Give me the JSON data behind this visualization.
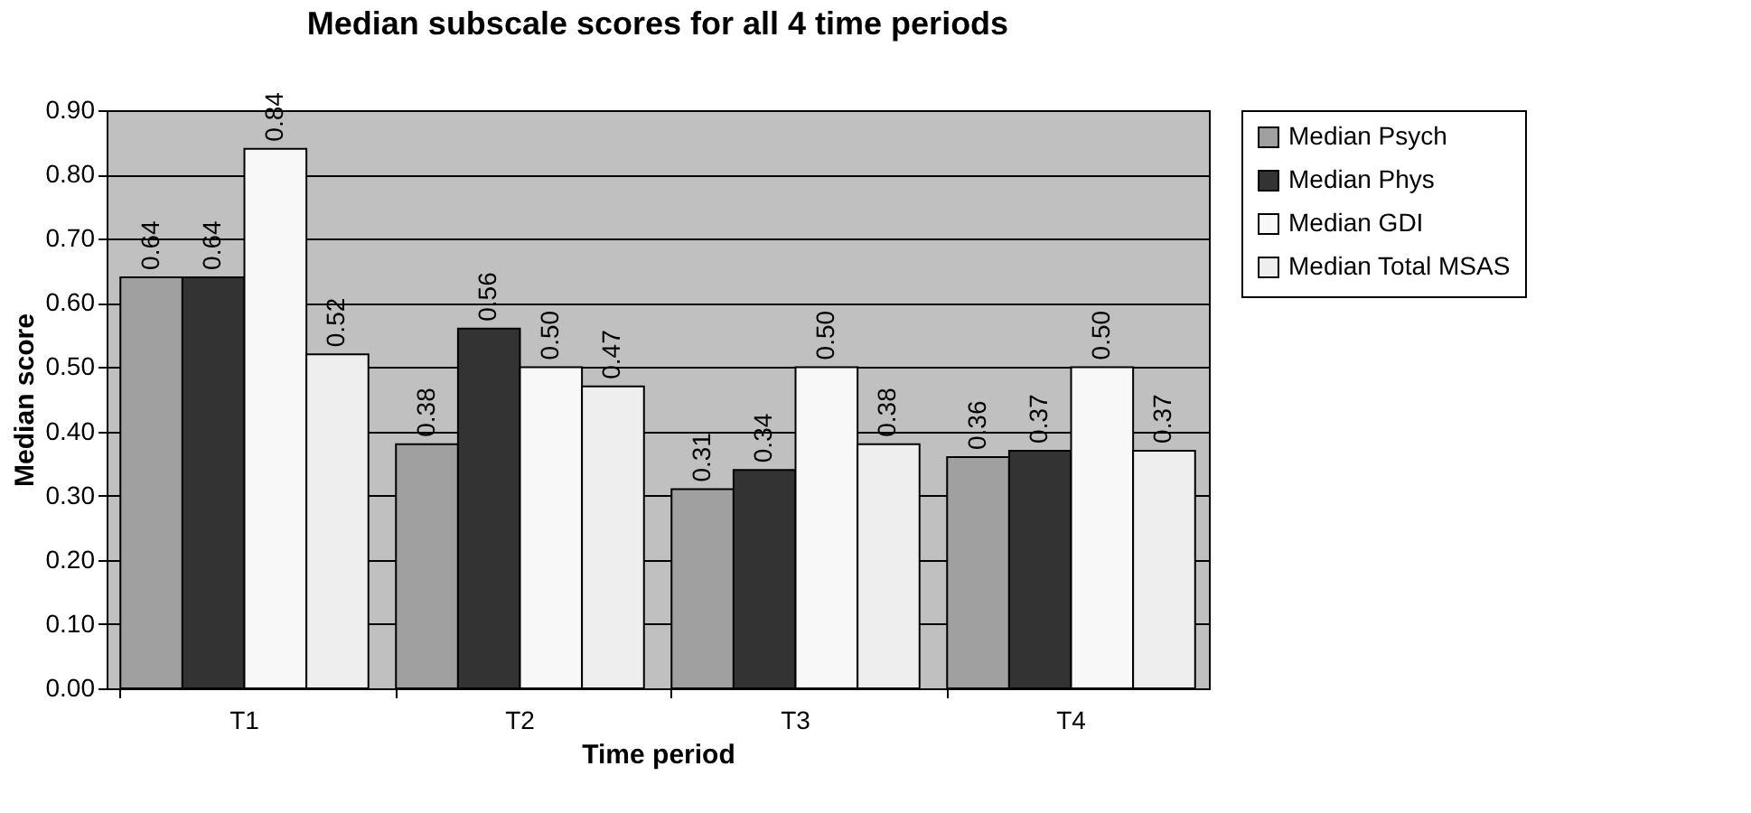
{
  "chart_data": {
    "type": "bar",
    "title": "Median subscale scores for all 4 time periods",
    "xlabel": "Time period",
    "ylabel": "Median score",
    "categories": [
      "T1",
      "T2",
      "T3",
      "T4"
    ],
    "series": [
      {
        "name": "Median Psych",
        "color": "#a0a0a0",
        "values": [
          0.64,
          0.38,
          0.31,
          0.36
        ],
        "value_labels": [
          "0.64",
          "0.38",
          "0.31",
          "0.36"
        ]
      },
      {
        "name": "Median Phys",
        "color": "#333333",
        "values": [
          0.64,
          0.56,
          0.34,
          0.37
        ],
        "value_labels": [
          "0.64",
          "0.56",
          "0.34",
          "0.37"
        ]
      },
      {
        "name": "Median GDI",
        "color": "#f8f8f8",
        "values": [
          0.84,
          0.5,
          0.5,
          0.5
        ],
        "value_labels": [
          "0.84",
          "0.50",
          "0.50",
          "0.50"
        ]
      },
      {
        "name": "Median Total MSAS",
        "color": "#eeeeee",
        "values": [
          0.52,
          0.47,
          0.38,
          0.37
        ],
        "value_labels": [
          "0.52",
          "0.47",
          "0.38",
          "0.37"
        ]
      }
    ],
    "ylim": [
      0,
      0.9
    ],
    "yticks": [
      {
        "value": 0,
        "label": "0.00"
      },
      {
        "value": 0.1,
        "label": "0.10"
      },
      {
        "value": 0.2,
        "label": "0.20"
      },
      {
        "value": 0.3,
        "label": "0.30"
      },
      {
        "value": 0.4,
        "label": "0.40"
      },
      {
        "value": 0.5,
        "label": "0.50"
      },
      {
        "value": 0.6,
        "label": "0.60"
      },
      {
        "value": 0.7,
        "label": "0.70"
      },
      {
        "value": 0.8,
        "label": "0.80"
      },
      {
        "value": 0.9,
        "label": "0.90"
      }
    ],
    "grid": "y",
    "legend": "right"
  }
}
